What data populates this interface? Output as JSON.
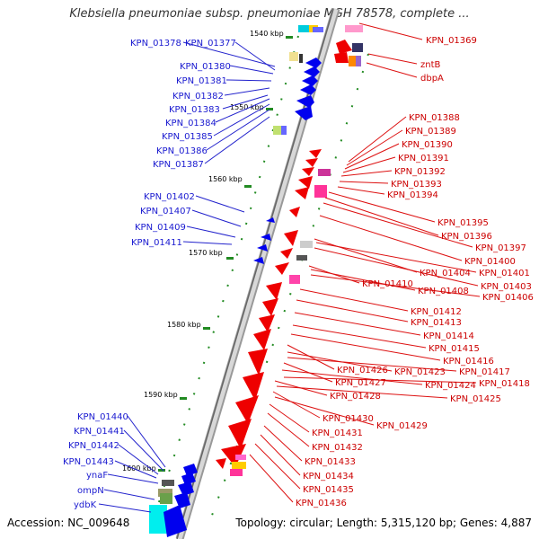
{
  "title": "Klebsiella pneumoniae subsp. pneumoniae MGH 78578, complete ...",
  "footer": {
    "accession": "Accession: NC_009648",
    "summary": "Topology: circular; Length: 5,315,120 bp; Genes: 4,887"
  },
  "ticks": [
    "1540 kbp",
    "1550 kbp",
    "1560 kbp",
    "1570 kbp",
    "1580 kbp",
    "1590 kbp",
    "1600 kbp"
  ],
  "left_labels": [
    "KPN_01378",
    "KPN_01377",
    "KPN_01380",
    "KPN_01381",
    "KPN_01382",
    "KPN_01383",
    "KPN_01384",
    "KPN_01385",
    "KPN_01386",
    "KPN_01387",
    "KPN_01402",
    "KPN_01407",
    "KPN_01409",
    "KPN_01411",
    "KPN_01440",
    "KPN_01441",
    "KPN_01442",
    "KPN_01443",
    "ynaF",
    "ompN",
    "ydbK"
  ],
  "right_labels": [
    "KPN_01369",
    "zntB",
    "dbpA",
    "KPN_01388",
    "KPN_01389",
    "KPN_01390",
    "KPN_01391",
    "KPN_01392",
    "KPN_01393",
    "KPN_01394",
    "KPN_01395",
    "KPN_01396",
    "KPN_01397",
    "KPN_01400",
    "KPN_01404",
    "KPN_01401",
    "KPN_01403",
    "KPN_01410",
    "KPN_01408",
    "KPN_01406",
    "KPN_01412",
    "KPN_01413",
    "KPN_01414",
    "KPN_01415",
    "KPN_01416",
    "KPN_01426",
    "KPN_01423",
    "KPN_01417",
    "KPN_01427",
    "KPN_01424",
    "KPN_01418",
    "KPN_01428",
    "KPN_01425",
    "KPN_01430",
    "KPN_01429",
    "KPN_01431",
    "KPN_01432",
    "KPN_01433",
    "KPN_01434",
    "KPN_01435",
    "KPN_01436"
  ],
  "colors": {
    "forward": "#0000ee",
    "reverse": "#ee0000",
    "backbone": "#777777",
    "tick": "#228b22"
  }
}
